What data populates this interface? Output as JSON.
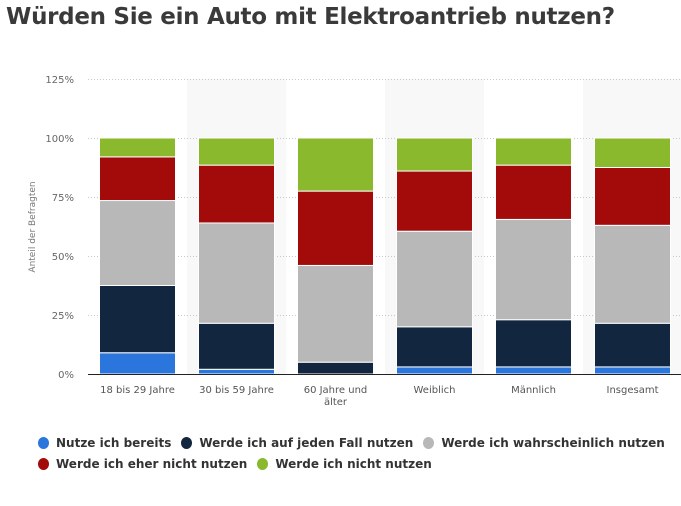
{
  "title": "Würden Sie ein Auto mit Elektroantrieb nutzen?",
  "chart_data": {
    "type": "bar",
    "stacked": true,
    "title": "Würden Sie ein Auto mit Elektroantrieb nutzen?",
    "xlabel": "",
    "ylabel": "Anteil der Befragten",
    "ylim": [
      0,
      125
    ],
    "yticks": [
      0,
      25,
      50,
      75,
      100,
      125
    ],
    "ytick_labels": [
      "0%",
      "25%",
      "50%",
      "75%",
      "100%",
      "125%"
    ],
    "grid": true,
    "legend_position": "bottom",
    "categories": [
      "18 bis 29 Jahre",
      "30 bis 59 Jahre",
      "60 Jahre und älter",
      "Weiblich",
      "Männlich",
      "Insgesamt"
    ],
    "series": [
      {
        "name": "Nutze ich bereits",
        "color": "#2a76dd",
        "values": [
          9,
          2,
          0,
          3,
          3,
          3
        ]
      },
      {
        "name": "Werde ich auf jeden Fall nutzen",
        "color": "#12263f",
        "values": [
          28.5,
          19.5,
          5,
          17,
          20,
          18.5
        ]
      },
      {
        "name": "Werde ich wahrscheinlich nutzen",
        "color": "#b8b8b8",
        "values": [
          36,
          42.5,
          41,
          40.5,
          42.5,
          41.5
        ]
      },
      {
        "name": "Werde ich eher nicht nutzen",
        "color": "#a30b0b",
        "values": [
          18.5,
          24.5,
          31.5,
          25.5,
          23,
          24.5
        ]
      },
      {
        "name": "Werde ich nicht nutzen",
        "color": "#8ab92d",
        "values": [
          8,
          11.5,
          22.5,
          14,
          11.5,
          12.5
        ]
      }
    ]
  }
}
